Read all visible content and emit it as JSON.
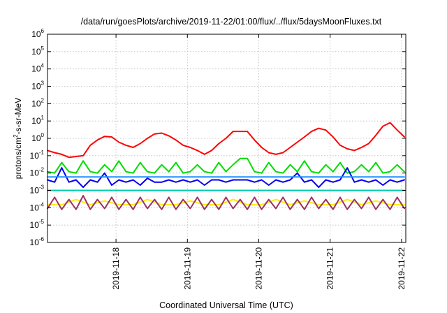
{
  "chart_data": {
    "type": "line",
    "title": "/data/run/goesPlots/archive/2019-11-22/01:00/flux/../flux/5daysMoonFluxes.txt",
    "xlabel": "Coordinated Universal Time (UTC)",
    "ylabel_prefix": "protons/cm",
    "ylabel_sup": "2",
    "ylabel_suffix": "-s-sr-MeV",
    "yscale": "log",
    "ylim": [
      1e-06,
      1000000.0
    ],
    "xlim": [
      0,
      5.02
    ],
    "xticks": [
      {
        "x": 0.96,
        "label": "2019-11-18"
      },
      {
        "x": 1.96,
        "label": "2019-11-19"
      },
      {
        "x": 2.96,
        "label": "2019-11-20"
      },
      {
        "x": 3.96,
        "label": "2019-11-21"
      },
      {
        "x": 4.96,
        "label": "2019-11-22"
      }
    ],
    "yticks": [
      {
        "exp": -6,
        "label": "10",
        "sup": "-6"
      },
      {
        "exp": -5,
        "label": "10",
        "sup": "-5"
      },
      {
        "exp": -4,
        "label": "10",
        "sup": "-4"
      },
      {
        "exp": -3,
        "label": "10",
        "sup": "-3"
      },
      {
        "exp": -2,
        "label": "10",
        "sup": "-2"
      },
      {
        "exp": -1,
        "label": "10",
        "sup": "-1"
      },
      {
        "exp": 0,
        "label": "10",
        "sup": "0"
      },
      {
        "exp": 1,
        "label": "10",
        "sup": "1"
      },
      {
        "exp": 2,
        "label": "10",
        "sup": "2"
      },
      {
        "exp": 3,
        "label": "10",
        "sup": "3"
      },
      {
        "exp": 4,
        "label": "10",
        "sup": "4"
      },
      {
        "exp": 5,
        "label": "10",
        "sup": "5"
      },
      {
        "exp": 6,
        "label": "10",
        "sup": "6"
      }
    ],
    "grid": true,
    "series": [
      {
        "color": "#ff0000",
        "x": [
          0,
          0.1,
          0.2,
          0.3,
          0.4,
          0.5,
          0.6,
          0.7,
          0.8,
          0.9,
          1.0,
          1.1,
          1.2,
          1.3,
          1.4,
          1.5,
          1.6,
          1.7,
          1.8,
          1.9,
          2.0,
          2.1,
          2.2,
          2.3,
          2.4,
          2.5,
          2.6,
          2.7,
          2.8,
          2.9,
          3.0,
          3.1,
          3.2,
          3.3,
          3.4,
          3.5,
          3.6,
          3.7,
          3.8,
          3.9,
          4.0,
          4.1,
          4.2,
          4.3,
          4.4,
          4.5,
          4.6,
          4.7,
          4.8,
          4.9,
          5.0
        ],
        "y": [
          0.2,
          0.15,
          0.12,
          0.08,
          0.09,
          0.1,
          0.4,
          0.8,
          1.3,
          1.2,
          0.6,
          0.4,
          0.3,
          0.5,
          1.0,
          1.8,
          2.0,
          1.4,
          0.8,
          0.4,
          0.3,
          0.2,
          0.12,
          0.2,
          0.5,
          1.0,
          2.5,
          2.5,
          2.5,
          0.8,
          0.3,
          0.15,
          0.12,
          0.15,
          0.3,
          0.6,
          1.2,
          2.5,
          3.8,
          3.0,
          1.2,
          0.4,
          0.25,
          0.2,
          0.3,
          0.5,
          1.5,
          5.0,
          8.0,
          3.0,
          1.2
        ]
      },
      {
        "color": "#00dd00",
        "x": [
          0,
          0.1,
          0.2,
          0.3,
          0.4,
          0.5,
          0.6,
          0.7,
          0.8,
          0.9,
          1.0,
          1.1,
          1.2,
          1.3,
          1.4,
          1.5,
          1.6,
          1.7,
          1.8,
          1.9,
          2.0,
          2.1,
          2.2,
          2.3,
          2.4,
          2.5,
          2.6,
          2.7,
          2.8,
          2.9,
          3.0,
          3.1,
          3.2,
          3.3,
          3.4,
          3.5,
          3.6,
          3.7,
          3.8,
          3.9,
          4.0,
          4.1,
          4.2,
          4.3,
          4.4,
          4.5,
          4.6,
          4.7,
          4.8,
          4.9,
          5.0
        ],
        "y": [
          0.012,
          0.01,
          0.04,
          0.012,
          0.01,
          0.05,
          0.012,
          0.01,
          0.03,
          0.012,
          0.05,
          0.012,
          0.01,
          0.04,
          0.012,
          0.01,
          0.03,
          0.012,
          0.04,
          0.01,
          0.012,
          0.03,
          0.012,
          0.01,
          0.04,
          0.012,
          0.03,
          0.07,
          0.07,
          0.012,
          0.01,
          0.04,
          0.012,
          0.01,
          0.03,
          0.012,
          0.05,
          0.012,
          0.01,
          0.03,
          0.012,
          0.04,
          0.01,
          0.012,
          0.03,
          0.012,
          0.04,
          0.01,
          0.012,
          0.03,
          0.012
        ]
      },
      {
        "color": "#0000ee",
        "x": [
          0,
          0.1,
          0.2,
          0.3,
          0.4,
          0.5,
          0.6,
          0.7,
          0.8,
          0.9,
          1.0,
          1.1,
          1.2,
          1.3,
          1.4,
          1.5,
          1.6,
          1.7,
          1.8,
          1.9,
          2.0,
          2.1,
          2.2,
          2.3,
          2.4,
          2.5,
          2.6,
          2.7,
          2.8,
          2.9,
          3.0,
          3.1,
          3.2,
          3.3,
          3.4,
          3.5,
          3.6,
          3.7,
          3.8,
          3.9,
          4.0,
          4.1,
          4.2,
          4.3,
          4.4,
          4.5,
          4.6,
          4.7,
          4.8,
          4.9,
          5.0
        ],
        "y": [
          0.004,
          0.003,
          0.02,
          0.003,
          0.004,
          0.0015,
          0.004,
          0.003,
          0.01,
          0.002,
          0.004,
          0.003,
          0.004,
          0.002,
          0.005,
          0.003,
          0.003,
          0.004,
          0.003,
          0.004,
          0.003,
          0.004,
          0.002,
          0.004,
          0.004,
          0.003,
          0.004,
          0.004,
          0.004,
          0.003,
          0.004,
          0.002,
          0.004,
          0.003,
          0.004,
          0.01,
          0.003,
          0.004,
          0.0015,
          0.004,
          0.003,
          0.004,
          0.02,
          0.003,
          0.004,
          0.003,
          0.004,
          0.002,
          0.004,
          0.003,
          0.004
        ]
      },
      {
        "color": "#00ccaa",
        "x": [
          0,
          0.5,
          1.0,
          1.5,
          2.0,
          2.5,
          3.0,
          3.5,
          4.0,
          4.5,
          5.0
        ],
        "y": [
          0.001,
          0.001,
          0.001,
          0.001,
          0.001,
          0.001,
          0.001,
          0.001,
          0.001,
          0.001,
          0.001
        ]
      },
      {
        "color": "#1e90ff",
        "x": [
          0,
          0.5,
          1.0,
          1.5,
          2.0,
          2.5,
          3.0,
          3.5,
          4.0,
          4.5,
          5.0
        ],
        "y": [
          0.006,
          0.006,
          0.006,
          0.006,
          0.006,
          0.006,
          0.006,
          0.006,
          0.006,
          0.006,
          0.006
        ]
      },
      {
        "color": "#ffee00",
        "x": [
          0,
          0.2,
          0.4,
          0.6,
          0.8,
          1.0,
          1.2,
          1.4,
          1.6,
          1.8,
          2.0,
          2.2,
          2.4,
          2.6,
          2.8,
          3.0,
          3.2,
          3.4,
          3.6,
          3.8,
          4.0,
          4.2,
          4.4,
          4.6,
          4.8,
          5.0
        ],
        "y": [
          0.00015,
          0.00015,
          0.0003,
          0.00015,
          0.00025,
          0.00015,
          0.00015,
          0.0003,
          0.00015,
          0.00015,
          0.00025,
          0.00015,
          0.00015,
          0.0003,
          0.00015,
          0.00015,
          0.0003,
          0.00015,
          0.00025,
          0.00015,
          0.00015,
          0.0003,
          0.00015,
          0.00025,
          0.00015,
          0.00015
        ]
      },
      {
        "color": "#993366",
        "x": [
          0,
          0.1,
          0.2,
          0.3,
          0.4,
          0.5,
          0.6,
          0.7,
          0.8,
          0.9,
          1.0,
          1.1,
          1.2,
          1.3,
          1.4,
          1.5,
          1.6,
          1.7,
          1.8,
          1.9,
          2.0,
          2.1,
          2.2,
          2.3,
          2.4,
          2.5,
          2.6,
          2.7,
          2.8,
          2.9,
          3.0,
          3.1,
          3.2,
          3.3,
          3.4,
          3.5,
          3.6,
          3.7,
          3.8,
          3.9,
          4.0,
          4.1,
          4.2,
          4.3,
          4.4,
          4.5,
          4.6,
          4.7,
          4.8,
          4.9,
          5.0
        ],
        "y": [
          9e-05,
          0.0004,
          8e-05,
          0.0003,
          8e-05,
          0.0005,
          8e-05,
          0.0003,
          9e-05,
          0.0004,
          8e-05,
          0.0003,
          8e-05,
          0.0004,
          9e-05,
          0.0003,
          8e-05,
          0.0004,
          8e-05,
          0.0003,
          9e-05,
          0.0004,
          8e-05,
          0.0003,
          8e-05,
          0.0004,
          9e-05,
          0.0003,
          8e-05,
          0.0004,
          8e-05,
          0.0003,
          9e-05,
          0.0004,
          8e-05,
          0.0003,
          8e-05,
          0.0004,
          9e-05,
          0.0003,
          8e-05,
          0.0004,
          8e-05,
          0.0003,
          9e-05,
          0.0004,
          8e-05,
          0.0003,
          8e-05,
          0.0004,
          9e-05
        ]
      }
    ]
  }
}
